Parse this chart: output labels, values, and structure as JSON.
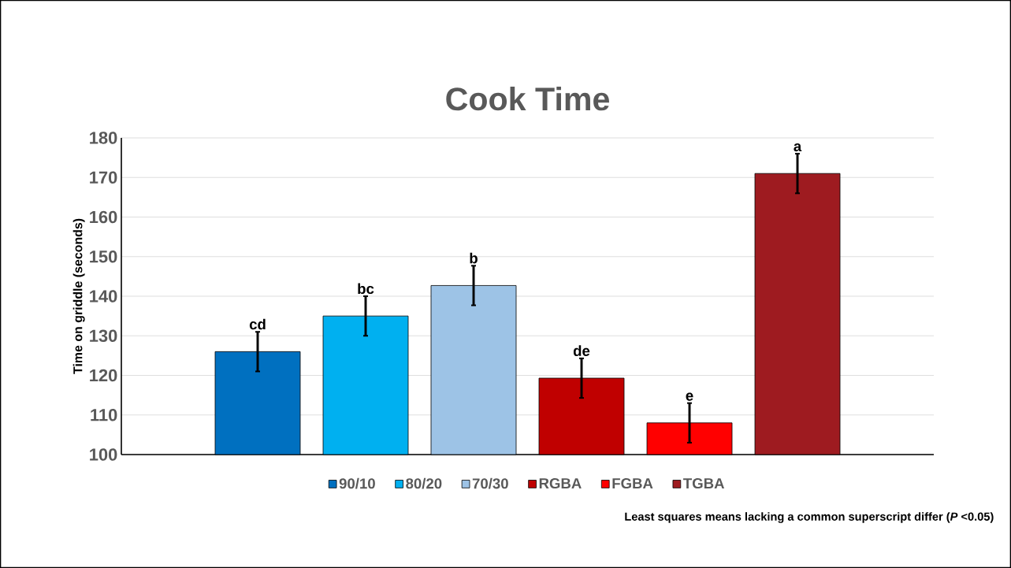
{
  "chart_data": {
    "type": "bar",
    "title": "Cook Time",
    "ylabel": "Time on griddle (seconds)",
    "categories": [
      null
    ],
    "series": [
      {
        "name": "90/10",
        "color": "#0070c0",
        "values": [
          126
        ],
        "errors": [
          5
        ],
        "value_labels": [
          "cd"
        ]
      },
      {
        "name": "80/20",
        "color": "#00b0f0",
        "values": [
          135
        ],
        "errors": [
          5
        ],
        "value_labels": [
          "bc"
        ]
      },
      {
        "name": "70/30",
        "color": "#9dc3e6",
        "values": [
          142.7
        ],
        "errors": [
          5
        ],
        "value_labels": [
          "b"
        ]
      },
      {
        "name": "RGBA",
        "color": "#c00000",
        "values": [
          119.3
        ],
        "errors": [
          5
        ],
        "value_labels": [
          "de"
        ]
      },
      {
        "name": "FGBA",
        "color": "#ff0000",
        "values": [
          108
        ],
        "errors": [
          5
        ],
        "value_labels": [
          "e"
        ]
      },
      {
        "name": "TGBA",
        "color": "#9e1b20",
        "values": [
          171
        ],
        "errors": [
          5
        ],
        "value_labels": [
          "a"
        ]
      }
    ],
    "ylim": [
      100,
      180
    ],
    "yticks": [
      100,
      110,
      120,
      130,
      140,
      150,
      160,
      170,
      180
    ],
    "grid": "y",
    "legend": "bottom",
    "annotations": [
      "Least squares means lacking a common superscript differ (*P* <0.05)"
    ]
  }
}
